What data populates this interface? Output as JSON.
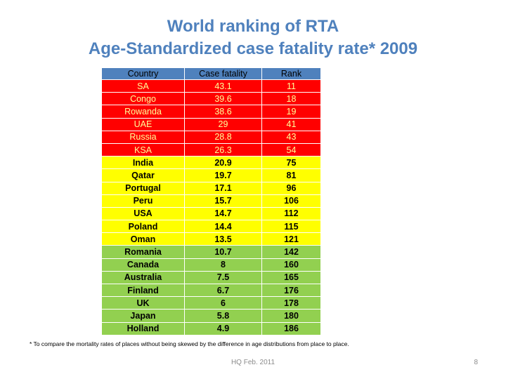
{
  "slide": {
    "title_line1": "World ranking of RTA",
    "title_line2": "Age-Standardized case fatality rate* 2009",
    "footnote": "* To compare the mortality rates of places without being skewed by the difference in age distributions from place to place.",
    "footer": "HQ Feb. 2011",
    "page_number": "8"
  },
  "table": {
    "headers": [
      "Country",
      "Case fatality",
      "Rank"
    ],
    "tier_colors": {
      "red": "#ff0000",
      "yellow": "#ffff00",
      "green": "#92d050",
      "header": "#4f81bd"
    },
    "rows": [
      {
        "tier": "red",
        "country": "SA",
        "case_fatality": "43.1",
        "rank": "11"
      },
      {
        "tier": "red",
        "country": "Congo",
        "case_fatality": "39.6",
        "rank": "18"
      },
      {
        "tier": "red",
        "country": "Rowanda",
        "case_fatality": "38.6",
        "rank": "19"
      },
      {
        "tier": "red",
        "country": "UAE",
        "case_fatality": "29",
        "rank": "41"
      },
      {
        "tier": "red",
        "country": "Russia",
        "case_fatality": "28.8",
        "rank": "43"
      },
      {
        "tier": "red",
        "country": "KSA",
        "case_fatality": "26.3",
        "rank": "54"
      },
      {
        "tier": "yellow",
        "country": "India",
        "case_fatality": "20.9",
        "rank": "75"
      },
      {
        "tier": "yellow",
        "country": "Qatar",
        "case_fatality": "19.7",
        "rank": "81"
      },
      {
        "tier": "yellow",
        "country": "Portugal",
        "case_fatality": "17.1",
        "rank": "96"
      },
      {
        "tier": "yellow",
        "country": "Peru",
        "case_fatality": "15.7",
        "rank": "106"
      },
      {
        "tier": "yellow",
        "country": "USA",
        "case_fatality": "14.7",
        "rank": "112"
      },
      {
        "tier": "yellow",
        "country": "Poland",
        "case_fatality": "14.4",
        "rank": "115"
      },
      {
        "tier": "yellow",
        "country": "Oman",
        "case_fatality": "13.5",
        "rank": "121"
      },
      {
        "tier": "green",
        "country": "Romania",
        "case_fatality": "10.7",
        "rank": "142"
      },
      {
        "tier": "green",
        "country": "Canada",
        "case_fatality": "8",
        "rank": "160"
      },
      {
        "tier": "green",
        "country": "Australia",
        "case_fatality": "7.5",
        "rank": "165"
      },
      {
        "tier": "green",
        "country": "Finland",
        "case_fatality": "6.7",
        "rank": "176"
      },
      {
        "tier": "green",
        "country": "UK",
        "case_fatality": "6",
        "rank": "178"
      },
      {
        "tier": "green",
        "country": "Japan",
        "case_fatality": "5.8",
        "rank": "180"
      },
      {
        "tier": "green",
        "country": "Holland",
        "case_fatality": "4.9",
        "rank": "186"
      }
    ]
  }
}
